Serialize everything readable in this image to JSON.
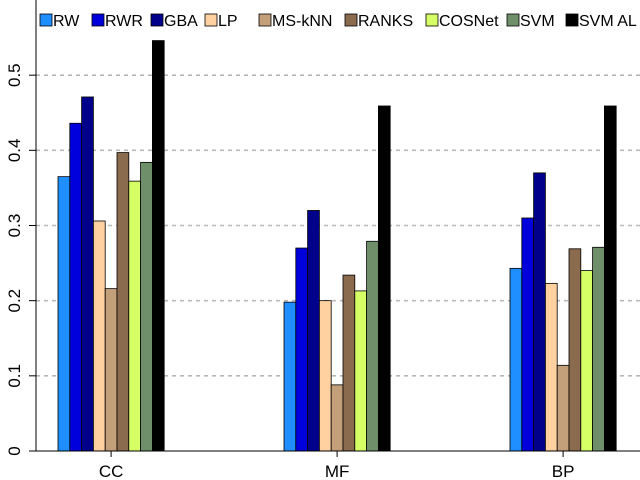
{
  "chart_data": {
    "type": "bar",
    "title": "",
    "xlabel": "",
    "ylabel": "",
    "categories": [
      "CC",
      "MF",
      "BP"
    ],
    "ylim": [
      0,
      0.6
    ],
    "yticks": [
      0,
      0.1,
      0.2,
      0.3,
      0.4,
      0.5
    ],
    "ytick_labels": [
      "0",
      "0.1",
      "0.2",
      "0.3",
      "0.4",
      "0.5"
    ],
    "grid": "horizontal dashed",
    "legend_position": "top",
    "series": [
      {
        "name": "RW",
        "color": "#1f8fff",
        "values": [
          0.365,
          0.198,
          0.243
        ]
      },
      {
        "name": "RWR",
        "color": "#0000dd",
        "values": [
          0.436,
          0.27,
          0.31
        ]
      },
      {
        "name": "GBA",
        "color": "#00008b",
        "values": [
          0.471,
          0.32,
          0.37
        ]
      },
      {
        "name": "LP",
        "color": "#ffd0a0",
        "values": [
          0.306,
          0.2,
          0.223
        ]
      },
      {
        "name": "MS-kNN",
        "color": "#c4a07a",
        "values": [
          0.216,
          0.088,
          0.114
        ]
      },
      {
        "name": "RANKS",
        "color": "#8b6b4e",
        "values": [
          0.397,
          0.234,
          0.269
        ]
      },
      {
        "name": "COSNet",
        "color": "#d6ff66",
        "values": [
          0.359,
          0.213,
          0.24
        ]
      },
      {
        "name": "SVM",
        "color": "#6e8f6a",
        "values": [
          0.384,
          0.279,
          0.271
        ]
      },
      {
        "name": "SVM AL",
        "color": "#000000",
        "values": [
          0.546,
          0.459,
          0.459
        ]
      }
    ]
  }
}
